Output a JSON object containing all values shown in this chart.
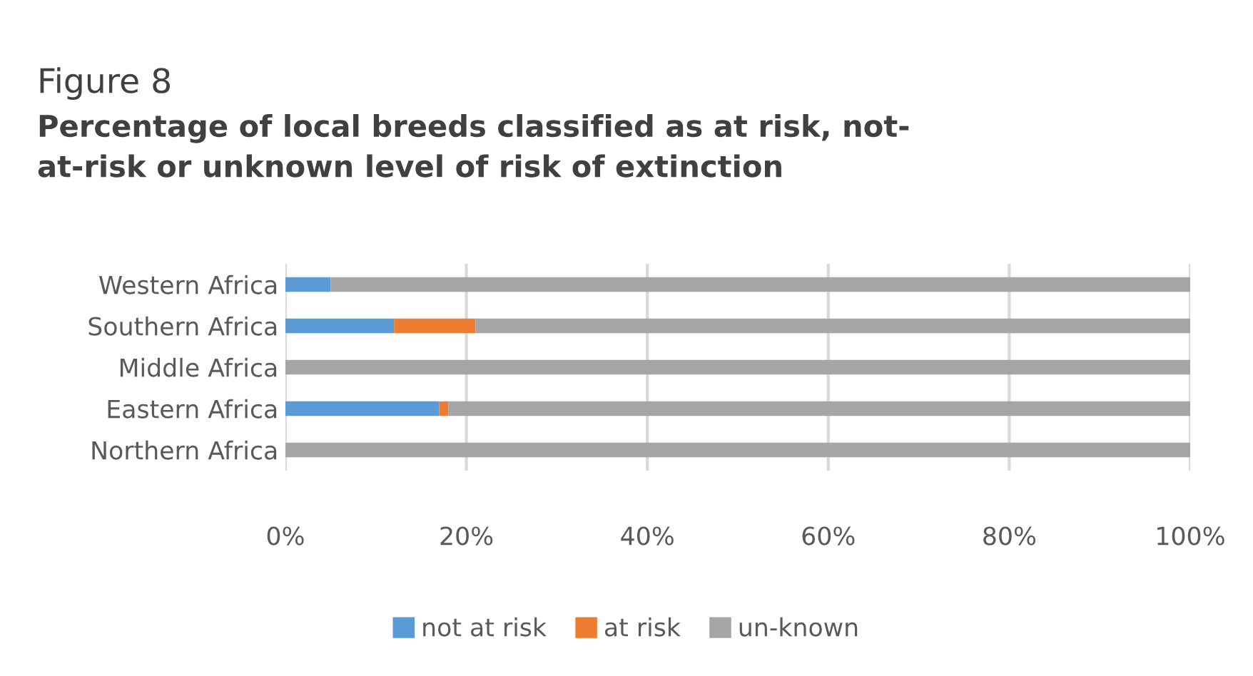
{
  "chart_data": {
    "type": "bar",
    "orientation": "horizontal",
    "stacked": true,
    "title": "Figure 8",
    "subtitle": "Percentage of local breeds classified as at risk, not-\nat-risk or unknown level of risk of extinction",
    "categories": [
      "Western Africa",
      "Southern Africa",
      "Middle Africa",
      "Eastern Africa",
      "Northern Africa"
    ],
    "series": [
      {
        "name": "not at risk",
        "color": "#5b9bd5",
        "values": [
          5,
          12,
          0,
          17,
          0
        ]
      },
      {
        "name": "at risk",
        "color": "#ed7d31",
        "values": [
          0,
          9,
          0,
          1,
          0
        ]
      },
      {
        "name": "un-known",
        "color": "#a5a5a5",
        "values": [
          95,
          79,
          100,
          82,
          100
        ]
      }
    ],
    "xlim": [
      0,
      100
    ],
    "xticks": [
      {
        "value": 0,
        "label": "0%"
      },
      {
        "value": 20,
        "label": "20%"
      },
      {
        "value": 40,
        "label": "40%"
      },
      {
        "value": 60,
        "label": "60%"
      },
      {
        "value": 80,
        "label": "80%"
      },
      {
        "value": 100,
        "label": "100%"
      }
    ],
    "grid": "x",
    "legend": "bottom"
  }
}
